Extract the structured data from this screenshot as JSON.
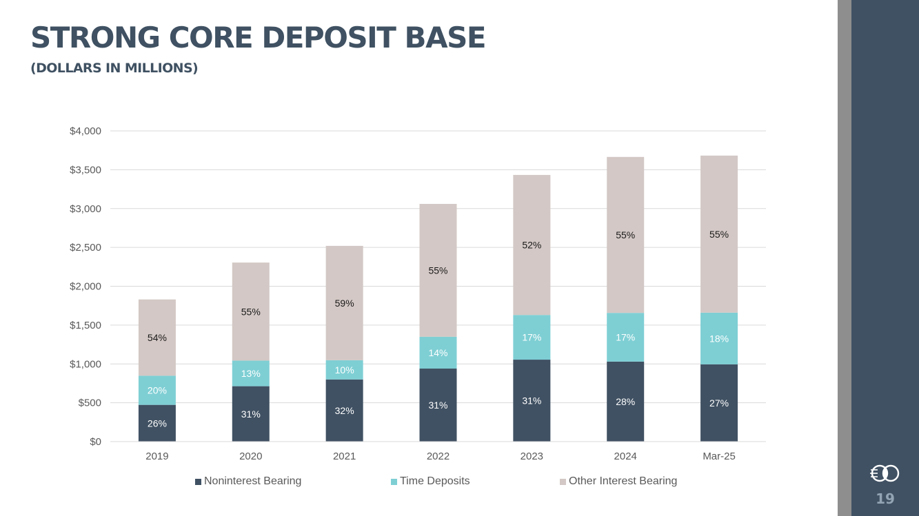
{
  "slide": {
    "title": "STRONG CORE DEPOSIT BASE",
    "subtitle": "(DOLLARS IN MILLIONS)",
    "page_number": "19",
    "colors": {
      "accent_navy": "#405163",
      "rail_gray": "#8e8e8e",
      "title": "#3f5162"
    }
  },
  "chart_data": {
    "type": "bar",
    "stacked": true,
    "categories": [
      "2019",
      "2020",
      "2021",
      "2022",
      "2023",
      "2024",
      "Mar-25"
    ],
    "y_tick_labels": [
      "$0",
      "$500",
      "$1,000",
      "$1,500",
      "$2,000",
      "$2,500",
      "$3,000",
      "$3,500",
      "$4,000"
    ],
    "ylim": [
      0,
      4000
    ],
    "y_step": 500,
    "grid": true,
    "legend_position": "bottom",
    "series": [
      {
        "name": "Noninterest Bearing",
        "color": "#405163",
        "values": [
          473,
          713,
          800,
          940,
          1055,
          1030,
          995
        ],
        "labels": [
          "26%",
          "31%",
          "32%",
          "31%",
          "31%",
          "28%",
          "27%"
        ],
        "label_color": "#ffffff"
      },
      {
        "name": "Time Deposits",
        "color": "#7ecfd4",
        "values": [
          375,
          330,
          248,
          410,
          575,
          627,
          665
        ],
        "labels": [
          "20%",
          "13%",
          "10%",
          "14%",
          "17%",
          "17%",
          "18%"
        ],
        "label_color": "#ffffff"
      },
      {
        "name": "Other Interest Bearing",
        "color": "#d3c8c5",
        "values": [
          982,
          1262,
          1472,
          1710,
          1803,
          2008,
          2022
        ],
        "labels": [
          "54%",
          "55%",
          "59%",
          "55%",
          "52%",
          "55%",
          "55%"
        ],
        "label_color": "#1a1a1a"
      }
    ]
  }
}
